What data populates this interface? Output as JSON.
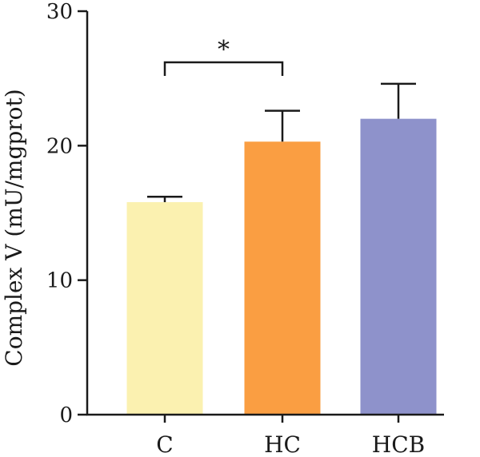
{
  "chart_data": {
    "type": "bar",
    "categories": [
      "C",
      "HC",
      "HCB"
    ],
    "values": [
      15.8,
      20.3,
      22.0
    ],
    "errors": [
      0.4,
      2.3,
      2.6
    ],
    "colors": [
      "#fbf1b0",
      "#fa9e42",
      "#8e92cb"
    ],
    "title": "",
    "xlabel": "",
    "ylabel": "Complex V (mU/mgprot)",
    "ylim": [
      0,
      30
    ],
    "yticks": [
      0,
      10,
      20,
      30
    ],
    "grid": false,
    "significance": [
      {
        "from": "C",
        "to": "HC",
        "label": "*"
      }
    ]
  }
}
